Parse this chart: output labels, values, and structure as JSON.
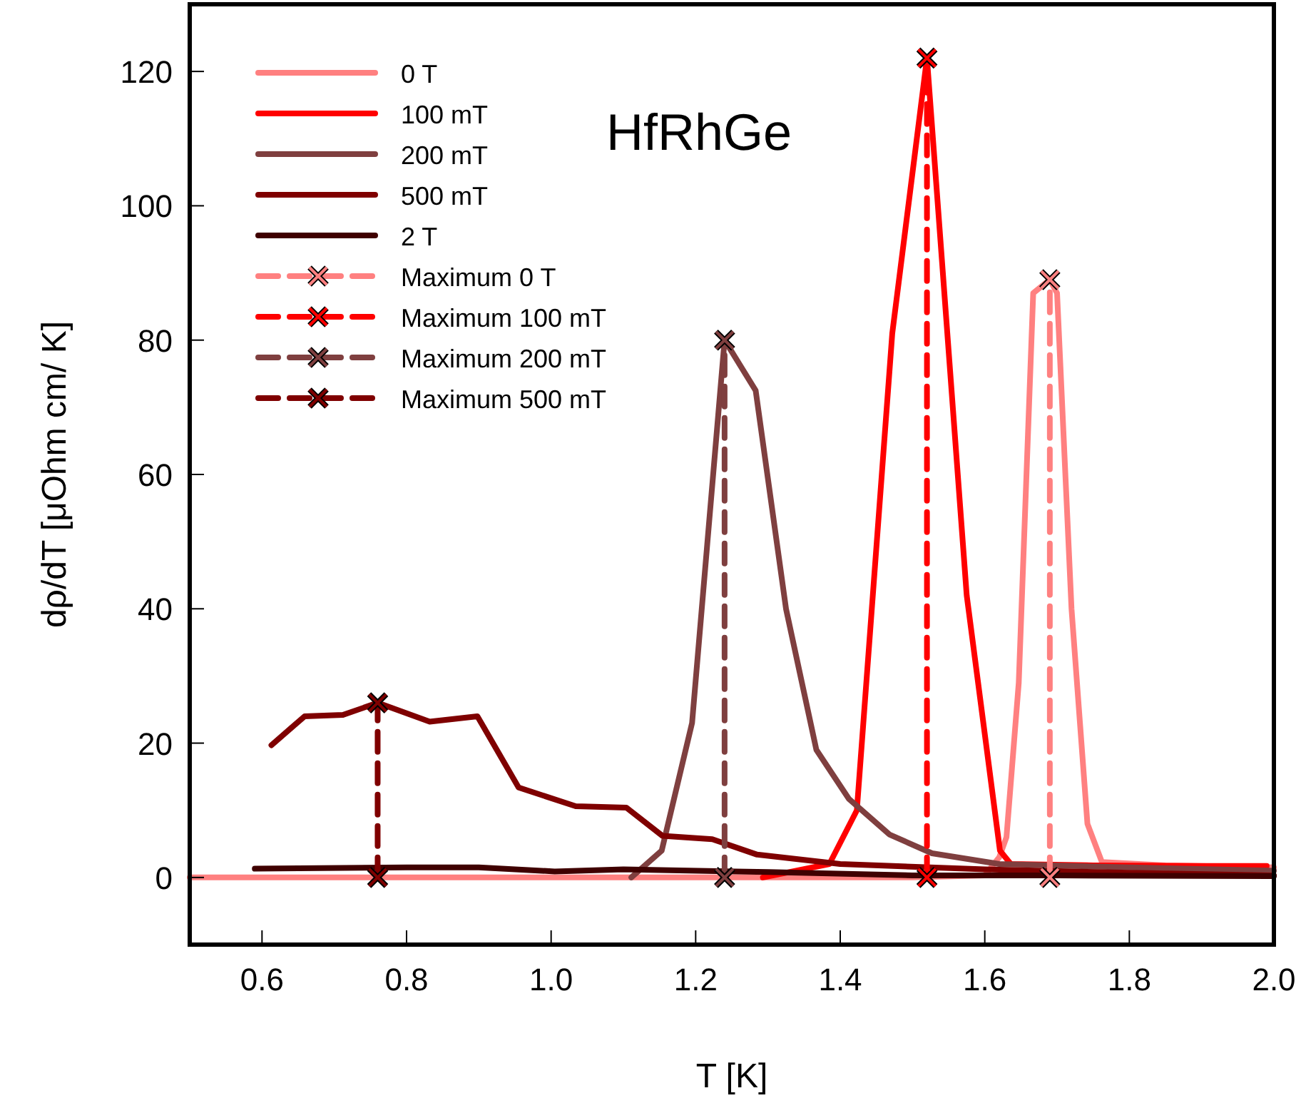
{
  "chart_data": {
    "type": "line",
    "title": "HfRhGe",
    "xlabel": "T [K]",
    "ylabel": "dρ/dT [μOhm  cm/ K]",
    "xlim": [
      0.5,
      2.0
    ],
    "ylim": [
      -10,
      130
    ],
    "xticks": [
      0.6,
      0.8,
      {
        "value": 1,
        "label": "1.0"
      },
      1.2,
      1.4,
      1.6,
      1.8,
      {
        "value": 2,
        "label": "2.0"
      }
    ],
    "yticks": [
      0,
      20,
      40,
      60,
      80,
      100,
      120
    ],
    "grid": false,
    "legend": "top left",
    "series": [
      {
        "name": "0 T",
        "color": "#ff8080",
        "x": [
          0.5,
          0.7,
          0.9,
          1.1,
          1.3,
          1.5,
          1.6,
          1.62,
          1.63,
          1.647,
          1.667,
          1.69,
          1.7,
          1.72,
          1.742,
          1.762,
          1.85,
          2.0
        ],
        "values": [
          0,
          0,
          0,
          0,
          0,
          0,
          0.3,
          3,
          6,
          29,
          87,
          89,
          87,
          40,
          8,
          2.3,
          1.8,
          1.5
        ]
      },
      {
        "name": "100 mT",
        "color": "#ff0000",
        "x": [
          1.293,
          1.385,
          1.423,
          1.472,
          1.52,
          1.575,
          1.621,
          1.636,
          1.75,
          1.9,
          1.99
        ],
        "values": [
          0,
          2,
          10,
          81,
          122,
          42,
          4,
          2,
          1.8,
          1.7,
          1.7
        ]
      },
      {
        "name": "200 mT",
        "color": "#7f3f3f",
        "x": [
          1.111,
          1.153,
          1.195,
          1.24,
          1.283,
          1.325,
          1.367,
          1.412,
          1.468,
          1.527,
          1.62,
          1.8,
          2.0
        ],
        "values": [
          0,
          4,
          23,
          80,
          72.5,
          40,
          19,
          11.7,
          6.4,
          3.6,
          2,
          1.5,
          1
        ]
      },
      {
        "name": "500 mT",
        "color": "#7f0000",
        "x": [
          0.613,
          0.659,
          0.712,
          0.76,
          0.832,
          0.898,
          0.955,
          1.034,
          1.104,
          1.154,
          1.223,
          1.285,
          1.4,
          1.6,
          1.8,
          2.0
        ],
        "values": [
          19.7,
          24,
          24.2,
          26,
          23.2,
          24,
          13.4,
          10.6,
          10.4,
          6.2,
          5.7,
          3.4,
          2,
          1.2,
          0.7,
          0.3
        ]
      },
      {
        "name": "2 T",
        "color": "#3f0000",
        "x": [
          0.59,
          0.8,
          0.9,
          1.005,
          1.1,
          1.3,
          1.5,
          1.7,
          2.0
        ],
        "values": [
          1.3,
          1.5,
          1.5,
          0.9,
          1.2,
          0.8,
          0.3,
          0.3,
          0.2
        ]
      },
      {
        "name": "Maximum 0 T",
        "color": "#ff8080",
        "line_style": "dashed",
        "marker": "cross",
        "x": [
          1.69,
          1.69
        ],
        "values": [
          0,
          89
        ]
      },
      {
        "name": "Maximum 100 mT",
        "color": "#ff0000",
        "line_style": "dashed",
        "marker": "cross",
        "x": [
          1.52,
          1.52
        ],
        "values": [
          0,
          122
        ]
      },
      {
        "name": "Maximum 200 mT",
        "color": "#7f3f3f",
        "line_style": "dashed",
        "marker": "cross",
        "x": [
          1.24,
          1.24
        ],
        "values": [
          0,
          80
        ]
      },
      {
        "name": "Maximum 500 mT",
        "color": "#7f0000",
        "line_style": "dashed",
        "marker": "cross",
        "x": [
          0.76,
          0.76
        ],
        "values": [
          0,
          26
        ]
      }
    ]
  }
}
